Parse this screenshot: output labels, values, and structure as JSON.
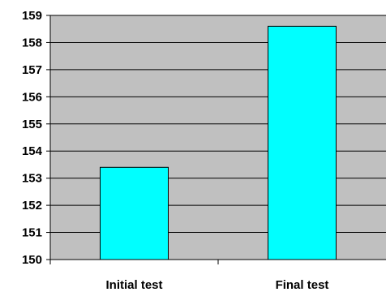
{
  "chart_data": {
    "type": "bar",
    "title": "",
    "xlabel": "",
    "ylabel": "",
    "categories": [
      "Initial test",
      "Final test"
    ],
    "values": [
      153.4,
      158.6
    ],
    "ylim": [
      150,
      159
    ],
    "yticks": [
      "150",
      "151",
      "152",
      "153",
      "154",
      "155",
      "156",
      "157",
      "158",
      "159"
    ],
    "grid": true,
    "legend": "none",
    "colors": {
      "plot_background": "#c0c0c0",
      "bar_fill": "#00ffff",
      "bar_stroke": "#000000",
      "gridline": "#000000",
      "axis": "#000000"
    }
  }
}
